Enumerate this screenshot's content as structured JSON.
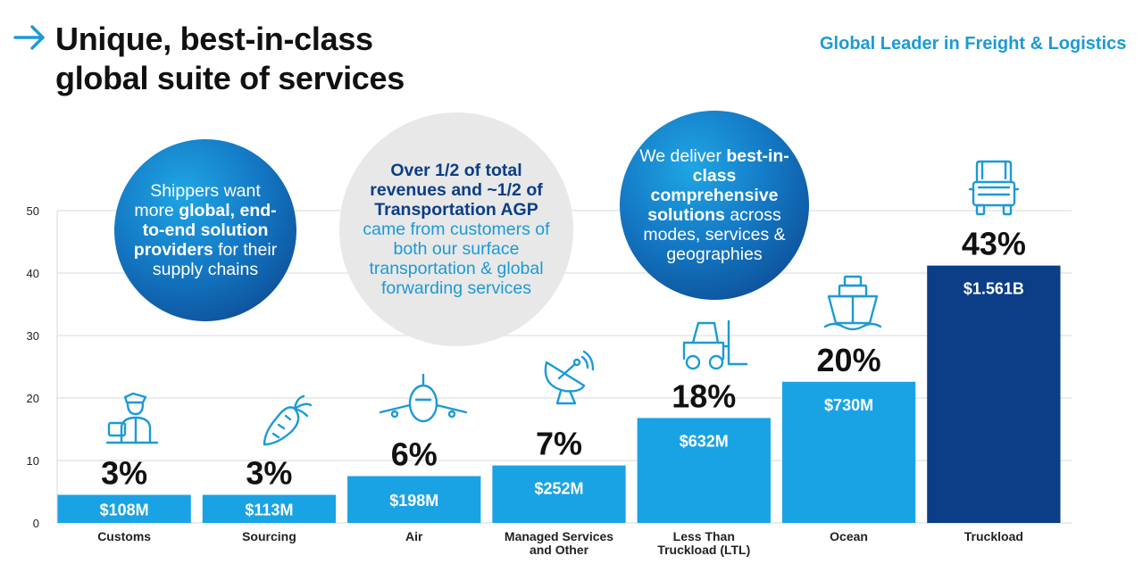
{
  "header": {
    "title_line1": "Unique, best-in-class",
    "title_line2": "global suite of services",
    "tagline": "Global Leader in Freight & Logistics"
  },
  "callouts": [
    {
      "parts": [
        {
          "t": "Shippers want more "
        },
        {
          "t": "global, end-to-end solution providers",
          "b": true
        },
        {
          "t": " for their supply chains"
        }
      ]
    },
    {
      "parts": [
        {
          "t": "Over 1/2 of total revenues and ~1/2 of Transportation AGP",
          "b": true
        },
        {
          "t": " came from customers of both our surface transportation & global forwarding services"
        }
      ]
    },
    {
      "parts": [
        {
          "t": "We deliver "
        },
        {
          "t": "best-in-class comprehensive solutions",
          "b": true
        },
        {
          "t": " across modes, services & geographies"
        }
      ]
    }
  ],
  "icons": [
    "customs-officer-icon",
    "carrot-icon",
    "airplane-icon",
    "satellite-dish-icon",
    "forklift-icon",
    "ship-icon",
    "truck-icon"
  ],
  "colors": {
    "accent": "#1c9ad6",
    "bar_light": "#1aa3e4",
    "bar_dark": "#0b3e86",
    "gridline": "#d9d9d9"
  },
  "chart_data": {
    "type": "bar",
    "categories": [
      "Customs",
      "Sourcing",
      "Air",
      "Managed Services and Other",
      "Less Than Truckload (LTL)",
      "Ocean",
      "Truckload"
    ],
    "category_lines": [
      [
        "Customs"
      ],
      [
        "Sourcing"
      ],
      [
        "Air"
      ],
      [
        "Managed Services",
        "and Other"
      ],
      [
        "Less Than",
        "Truckload (LTL)"
      ],
      [
        "Ocean"
      ],
      [
        "Truckload"
      ]
    ],
    "values": [
      4.5,
      4.5,
      7.5,
      9.2,
      16.8,
      22.6,
      41.2
    ],
    "percent_labels": [
      "3%",
      "3%",
      "6%",
      "7%",
      "18%",
      "20%",
      "43%"
    ],
    "revenue_labels": [
      "$108M",
      "$113M",
      "$198M",
      "$252M",
      "$632M",
      "$730M",
      "$1.561B"
    ],
    "yticks": [
      0,
      10,
      20,
      30,
      40,
      50
    ],
    "ylim": [
      0,
      50
    ],
    "grid": true,
    "legend": "none"
  }
}
